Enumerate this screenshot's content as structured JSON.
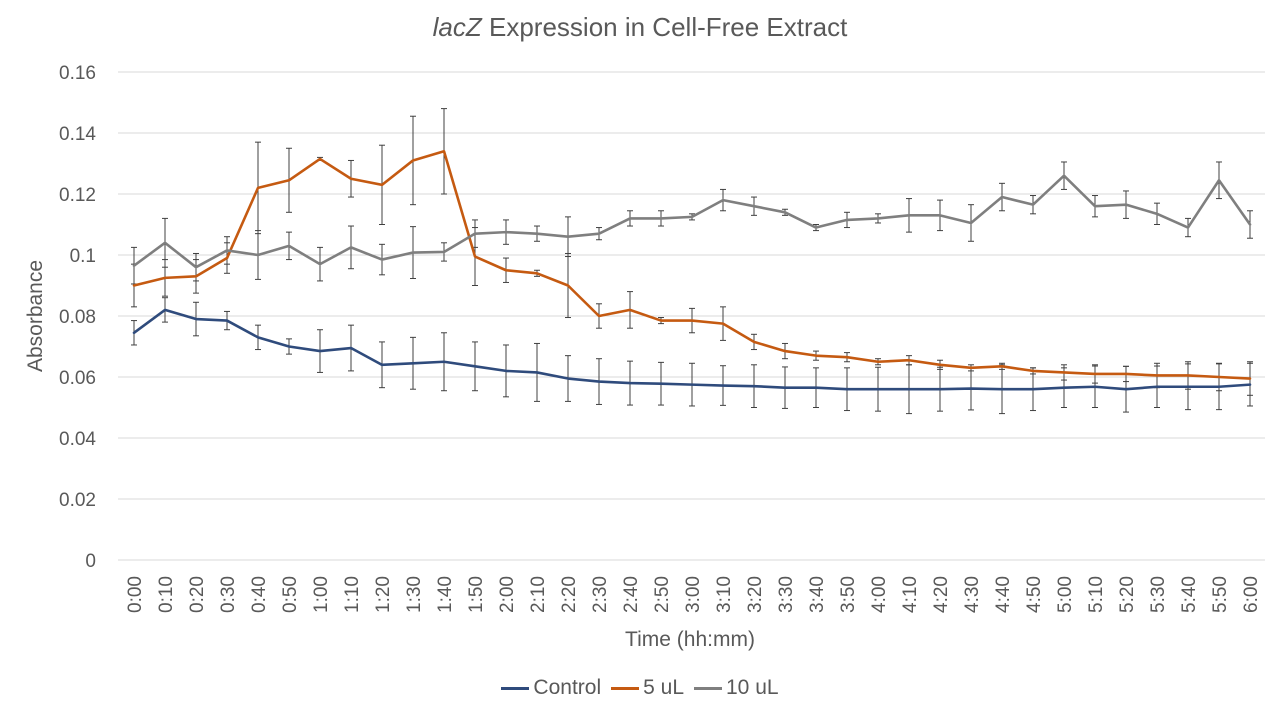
{
  "chart_data": {
    "type": "line",
    "title_italic": "lacZ",
    "title_rest": " Expression in Cell-Free Extract",
    "xlabel": "Time (hh:mm)",
    "ylabel": "Absorbance",
    "ylim": [
      0,
      0.16
    ],
    "yticks": [
      "0",
      "0.02",
      "0.04",
      "0.06",
      "0.08",
      "0.1",
      "0.12",
      "0.14",
      "0.16"
    ],
    "grid": true,
    "legend_position": "bottom",
    "categories": [
      "0:00",
      "0:10",
      "0:20",
      "0:30",
      "0:40",
      "0:50",
      "1:00",
      "1:10",
      "1:20",
      "1:30",
      "1:40",
      "1:50",
      "2:00",
      "2:10",
      "2:20",
      "2:30",
      "2:40",
      "2:50",
      "3:00",
      "3:10",
      "3:20",
      "3:30",
      "3:40",
      "3:50",
      "4:00",
      "4:10",
      "4:20",
      "4:30",
      "4:40",
      "4:50",
      "5:00",
      "5:10",
      "5:20",
      "5:30",
      "5:40",
      "5:50",
      "6:00"
    ],
    "series": [
      {
        "name": "Control",
        "color": "#2f4b7c",
        "values": [
          0.0745,
          0.082,
          0.079,
          0.0785,
          0.073,
          0.07,
          0.0685,
          0.0695,
          0.064,
          0.0645,
          0.065,
          0.0635,
          0.062,
          0.0615,
          0.0595,
          0.0585,
          0.058,
          0.0578,
          0.0575,
          0.0572,
          0.057,
          0.0565,
          0.0565,
          0.056,
          0.056,
          0.056,
          0.056,
          0.0562,
          0.056,
          0.056,
          0.0565,
          0.0568,
          0.056,
          0.0568,
          0.0568,
          0.0568,
          0.0575
        ],
        "errors": [
          0.004,
          0.004,
          0.0055,
          0.003,
          0.004,
          0.0025,
          0.007,
          0.0075,
          0.0075,
          0.0085,
          0.0095,
          0.008,
          0.0085,
          0.0095,
          0.0075,
          0.0075,
          0.0072,
          0.007,
          0.007,
          0.0065,
          0.007,
          0.0068,
          0.0065,
          0.007,
          0.0072,
          0.008,
          0.0072,
          0.007,
          0.008,
          0.007,
          0.0065,
          0.0068,
          0.0075,
          0.0068,
          0.0075,
          0.0075,
          0.007
        ]
      },
      {
        "name": "5 uL",
        "color": "#c55a11",
        "values": [
          0.09,
          0.0925,
          0.093,
          0.099,
          0.122,
          0.1245,
          0.1315,
          0.125,
          0.123,
          0.131,
          0.134,
          0.0995,
          0.095,
          0.094,
          0.09,
          0.08,
          0.082,
          0.0785,
          0.0785,
          0.0775,
          0.0715,
          0.0685,
          0.067,
          0.0665,
          0.065,
          0.0655,
          0.064,
          0.063,
          0.0635,
          0.062,
          0.0615,
          0.061,
          0.061,
          0.0605,
          0.0605,
          0.06,
          0.0595
        ],
        "errors": [
          0.007,
          0.006,
          0.0055,
          0.005,
          0.015,
          0.0105,
          0.0005,
          0.006,
          0.013,
          0.0145,
          0.014,
          0.0095,
          0.004,
          0.001,
          0.0105,
          0.004,
          0.006,
          0.001,
          0.004,
          0.0055,
          0.0025,
          0.0025,
          0.0015,
          0.0015,
          0.001,
          0.0015,
          0.0015,
          0.001,
          0.001,
          0.001,
          0.0025,
          0.003,
          0.0025,
          0.004,
          0.0045,
          0.0045,
          0.0055
        ]
      },
      {
        "name": "10 uL",
        "color": "#7f7f7f",
        "values": [
          0.0965,
          0.104,
          0.096,
          0.1015,
          0.1,
          0.103,
          0.097,
          0.1025,
          0.0985,
          0.1008,
          0.101,
          0.107,
          0.1075,
          0.107,
          0.106,
          0.107,
          0.112,
          0.112,
          0.1125,
          0.118,
          0.116,
          0.114,
          0.109,
          0.1115,
          0.112,
          0.113,
          0.113,
          0.1105,
          0.119,
          0.1165,
          0.126,
          0.116,
          0.1165,
          0.1135,
          0.109,
          0.1245,
          0.11
        ]
      }
    ],
    "series_10ul_errors": [
      0.006,
      0.008,
      0.0045,
      0.0045,
      0.008,
      0.0045,
      0.0055,
      0.007,
      0.005,
      0.0085,
      0.003,
      0.0045,
      0.004,
      0.0025,
      0.0065,
      0.002,
      0.0025,
      0.0025,
      0.001,
      0.0035,
      0.003,
      0.001,
      0.001,
      0.0025,
      0.0015,
      0.0055,
      0.005,
      0.006,
      0.0045,
      0.003,
      0.0045,
      0.0035,
      0.0045,
      0.0035,
      0.003,
      0.006,
      0.0045
    ]
  }
}
